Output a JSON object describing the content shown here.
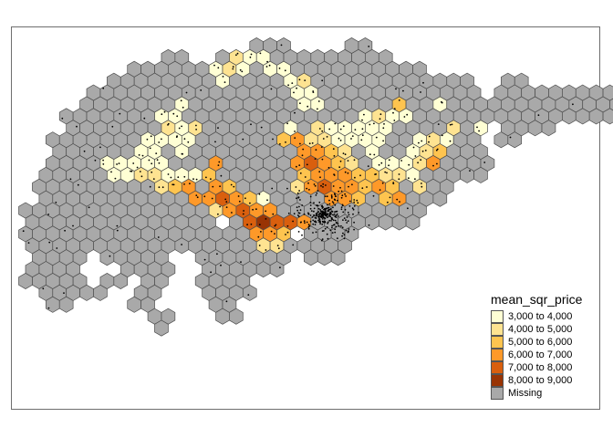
{
  "legend": {
    "title": "mean_sqr_price",
    "items": [
      {
        "label": "3,000 to 4,000",
        "color": "#ffffd4"
      },
      {
        "label": "4,000 to 5,000",
        "color": "#fee391"
      },
      {
        "label": "5,000 to 6,000",
        "color": "#fec44f"
      },
      {
        "label": "6,000 to 7,000",
        "color": "#fe9929"
      },
      {
        "label": "7,000 to 8,000",
        "color": "#d95f0e"
      },
      {
        "label": "8,000 to 9,000",
        "color": "#993404"
      },
      {
        "label": "Missing",
        "color": "#a9a9a9"
      }
    ]
  },
  "map": {
    "type": "hexbin choropleth",
    "fill_variable": "mean_sqr_price",
    "missing_color": "#a9a9a9",
    "point_color": "#000000",
    "hex_stroke": "#4d4d4d"
  }
}
